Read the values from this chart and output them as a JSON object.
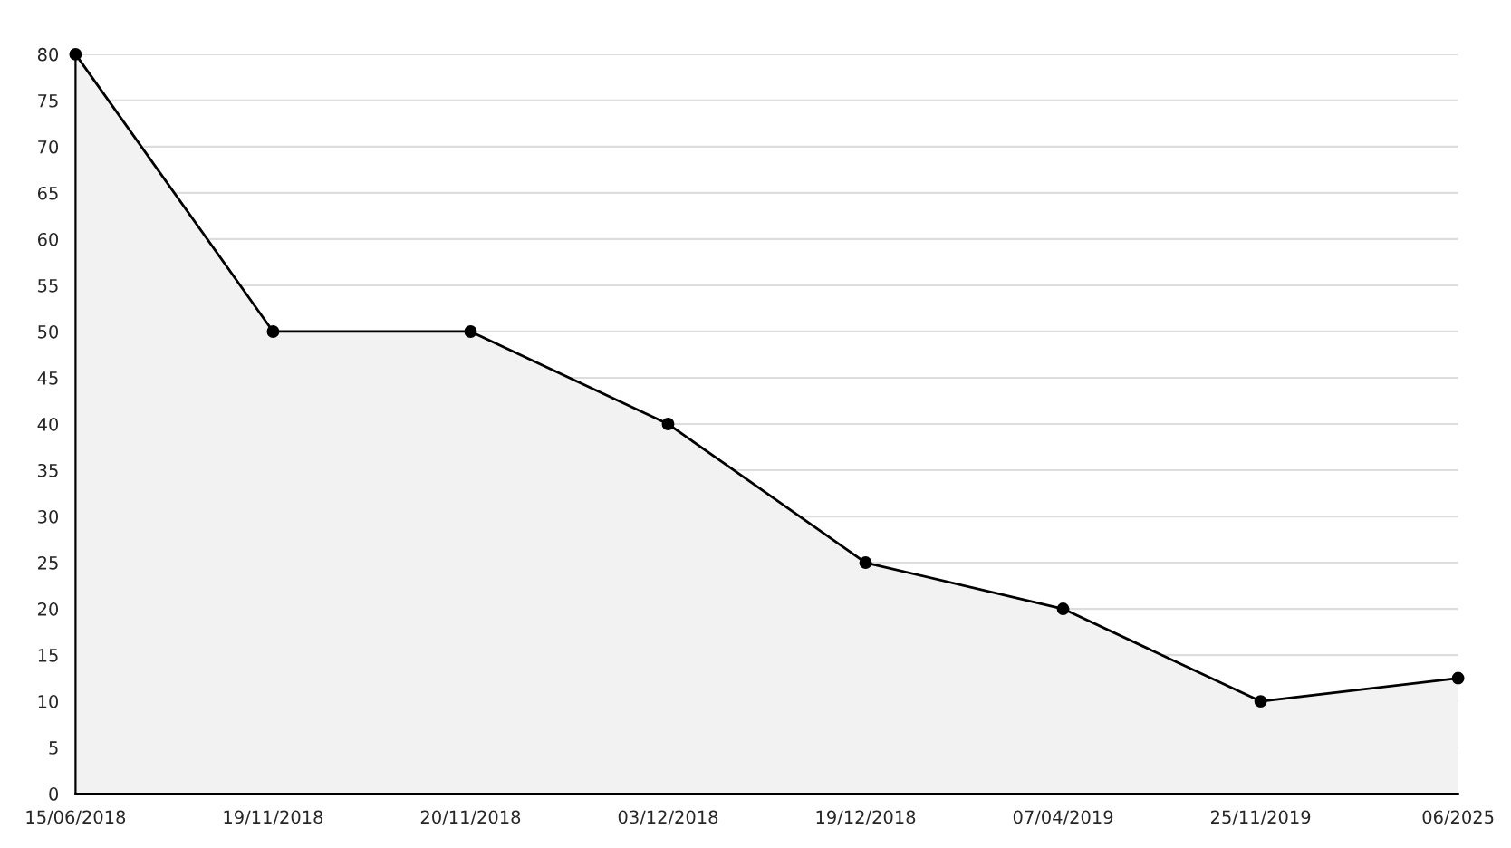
{
  "chart_data": {
    "type": "area",
    "categories": [
      "15/06/2018",
      "19/11/2018",
      "20/11/2018",
      "03/12/2018",
      "19/12/2018",
      "07/04/2019",
      "25/11/2019",
      "06/2025"
    ],
    "series": [
      {
        "color": "#000000",
        "values": [
          80,
          50,
          50,
          40,
          25,
          20,
          10,
          12.5
        ]
      }
    ],
    "ylim": [
      0,
      80
    ],
    "yticks": [
      0,
      5,
      10,
      15,
      20,
      25,
      30,
      35,
      40,
      45,
      50,
      55,
      60,
      65,
      70,
      75,
      80
    ],
    "grid": "y",
    "marker": "circle",
    "line_style": "solid",
    "legend": false
  }
}
